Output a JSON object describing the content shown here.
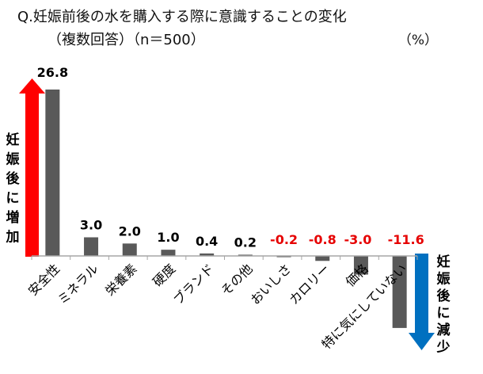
{
  "chart_data": {
    "type": "bar",
    "title_line1": "Q.妊娠前後の水を購入する際に意識することの変化",
    "title_line2": "（複数回答）（n＝500）",
    "unit": "（%）",
    "categories": [
      "安全性",
      "ミネラル",
      "栄養素",
      "硬度",
      "ブランド",
      "その他",
      "おいしさ",
      "カロリー",
      "価格",
      "特に気にしていない"
    ],
    "values": [
      26.8,
      3.0,
      2.0,
      1.0,
      0.4,
      0.2,
      -0.2,
      -0.8,
      -3.0,
      -11.6
    ],
    "value_labels": [
      "26.8",
      "3.0",
      "2.0",
      "1.0",
      "0.4",
      "0.2",
      "-0.2",
      "-0.8",
      "-3.0",
      "-11.6"
    ],
    "ylim": [
      -11.6,
      26.8
    ],
    "bar_color": "#595959",
    "positive_label_color": "#000000",
    "negative_label_color": "#e60000",
    "increase_label": "妊娠後に増加",
    "increase_color": "#ff0000",
    "decrease_label": "妊娠後に減少",
    "decrease_color": "#0070c0"
  }
}
